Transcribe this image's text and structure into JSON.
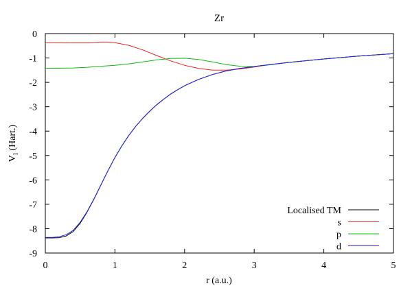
{
  "chart_data": {
    "type": "line",
    "title": "Zr",
    "xlabel": "r (a.u.)",
    "ylabel_main": "V",
    "ylabel_sub": "l",
    "ylabel_rest": " (Hart.)",
    "xlim": [
      0,
      5
    ],
    "ylim": [
      -9,
      0
    ],
    "x_ticks": [
      "0",
      "1",
      "2",
      "3",
      "4",
      "5"
    ],
    "y_ticks": [
      "0",
      "-1",
      "-2",
      "-3",
      "-4",
      "-5",
      "-6",
      "-7",
      "-8",
      "-9"
    ],
    "grid": false,
    "legend_position": "bottom-right",
    "series": [
      {
        "name": "Localised TM",
        "color": "#000000",
        "points": [
          [
            0,
            -8.38
          ],
          [
            0.1,
            -8.38
          ],
          [
            0.2,
            -8.37
          ],
          [
            0.3,
            -8.3
          ],
          [
            0.4,
            -8.12
          ],
          [
            0.5,
            -7.78
          ],
          [
            0.6,
            -7.32
          ],
          [
            0.7,
            -6.78
          ],
          [
            0.8,
            -6.2
          ],
          [
            0.9,
            -5.62
          ],
          [
            1.0,
            -5.08
          ],
          [
            1.1,
            -4.6
          ],
          [
            1.2,
            -4.17
          ],
          [
            1.3,
            -3.8
          ],
          [
            1.4,
            -3.47
          ],
          [
            1.5,
            -3.18
          ],
          [
            1.6,
            -2.92
          ],
          [
            1.7,
            -2.69
          ],
          [
            1.8,
            -2.48
          ],
          [
            1.9,
            -2.3
          ],
          [
            2.0,
            -2.14
          ],
          [
            2.2,
            -1.88
          ],
          [
            2.4,
            -1.68
          ],
          [
            2.6,
            -1.53
          ],
          [
            2.8,
            -1.43
          ],
          [
            3.0,
            -1.35
          ],
          [
            3.2,
            -1.28
          ],
          [
            3.5,
            -1.18
          ],
          [
            4.0,
            -1.04
          ],
          [
            4.5,
            -0.92
          ],
          [
            5.0,
            -0.82
          ]
        ]
      },
      {
        "name": "s",
        "color": "#e8231b",
        "points": [
          [
            0,
            -0.37
          ],
          [
            0.2,
            -0.37
          ],
          [
            0.4,
            -0.38
          ],
          [
            0.6,
            -0.38
          ],
          [
            0.8,
            -0.35
          ],
          [
            0.9,
            -0.35
          ],
          [
            1.0,
            -0.37
          ],
          [
            1.2,
            -0.48
          ],
          [
            1.4,
            -0.67
          ],
          [
            1.6,
            -0.9
          ],
          [
            1.8,
            -1.12
          ],
          [
            2.0,
            -1.3
          ],
          [
            2.2,
            -1.43
          ],
          [
            2.4,
            -1.5
          ],
          [
            2.6,
            -1.5
          ],
          [
            2.8,
            -1.45
          ],
          [
            3.0,
            -1.37
          ],
          [
            3.2,
            -1.28
          ],
          [
            3.5,
            -1.18
          ],
          [
            4.0,
            -1.04
          ],
          [
            4.5,
            -0.92
          ],
          [
            5.0,
            -0.82
          ]
        ]
      },
      {
        "name": "p",
        "color": "#11b811",
        "points": [
          [
            0,
            -1.42
          ],
          [
            0.2,
            -1.42
          ],
          [
            0.4,
            -1.41
          ],
          [
            0.6,
            -1.38
          ],
          [
            0.8,
            -1.34
          ],
          [
            1.0,
            -1.3
          ],
          [
            1.2,
            -1.24
          ],
          [
            1.4,
            -1.16
          ],
          [
            1.6,
            -1.08
          ],
          [
            1.8,
            -1.02
          ],
          [
            2.0,
            -1.01
          ],
          [
            2.2,
            -1.06
          ],
          [
            2.4,
            -1.16
          ],
          [
            2.6,
            -1.27
          ],
          [
            2.8,
            -1.34
          ],
          [
            3.0,
            -1.35
          ],
          [
            3.2,
            -1.29
          ],
          [
            3.5,
            -1.18
          ],
          [
            4.0,
            -1.04
          ],
          [
            4.5,
            -0.92
          ],
          [
            5.0,
            -0.82
          ]
        ]
      },
      {
        "name": "d",
        "color": "#2222ee",
        "points": [
          [
            0,
            -8.36
          ],
          [
            0.1,
            -8.36
          ],
          [
            0.2,
            -8.33
          ],
          [
            0.3,
            -8.25
          ],
          [
            0.4,
            -8.07
          ],
          [
            0.5,
            -7.74
          ],
          [
            0.6,
            -7.3
          ],
          [
            0.7,
            -6.77
          ],
          [
            0.8,
            -6.2
          ],
          [
            0.9,
            -5.62
          ],
          [
            1.0,
            -5.08
          ],
          [
            1.1,
            -4.6
          ],
          [
            1.2,
            -4.17
          ],
          [
            1.3,
            -3.8
          ],
          [
            1.4,
            -3.47
          ],
          [
            1.5,
            -3.18
          ],
          [
            1.6,
            -2.92
          ],
          [
            1.7,
            -2.69
          ],
          [
            1.8,
            -2.48
          ],
          [
            1.9,
            -2.3
          ],
          [
            2.0,
            -2.14
          ],
          [
            2.2,
            -1.88
          ],
          [
            2.4,
            -1.68
          ],
          [
            2.6,
            -1.53
          ],
          [
            2.8,
            -1.43
          ],
          [
            3.0,
            -1.35
          ],
          [
            3.2,
            -1.28
          ],
          [
            3.5,
            -1.18
          ],
          [
            4.0,
            -1.04
          ],
          [
            4.5,
            -0.92
          ],
          [
            5.0,
            -0.82
          ]
        ]
      }
    ]
  }
}
